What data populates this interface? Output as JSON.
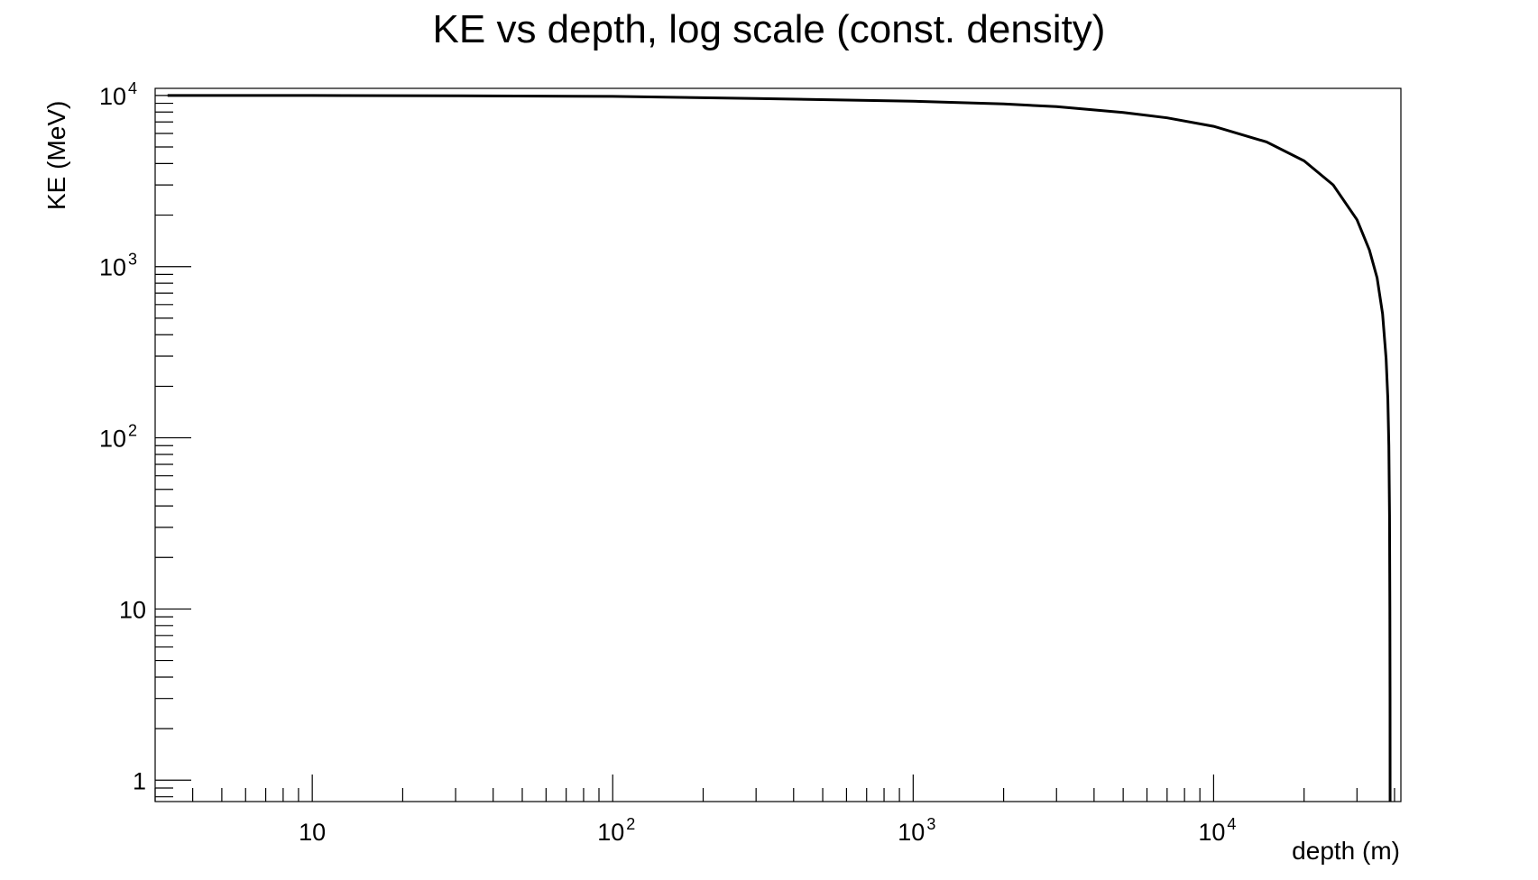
{
  "chart_data": {
    "type": "line",
    "title": "KE vs depth, log scale (const. density)",
    "xlabel": "depth (m)",
    "ylabel": "KE (MeV)",
    "xscale": "log",
    "yscale": "log",
    "xlim": [
      3.0,
      42000
    ],
    "ylim": [
      0.75,
      11000
    ],
    "grid": false,
    "x_ticks": [
      {
        "value": 10,
        "base": "10",
        "exp": ""
      },
      {
        "value": 100,
        "base": "10",
        "exp": "2"
      },
      {
        "value": 1000,
        "base": "10",
        "exp": "3"
      },
      {
        "value": 10000,
        "base": "10",
        "exp": "4"
      }
    ],
    "y_ticks": [
      {
        "value": 1,
        "base": "1",
        "exp": ""
      },
      {
        "value": 10,
        "base": "10",
        "exp": ""
      },
      {
        "value": 100,
        "base": "10",
        "exp": "2"
      },
      {
        "value": 1000,
        "base": "10",
        "exp": "3"
      },
      {
        "value": 10000,
        "base": "10",
        "exp": "4"
      }
    ],
    "series": [
      {
        "color": "#000000",
        "x": [
          3.3,
          10,
          30,
          100,
          300,
          1000,
          2000,
          3000,
          5000,
          7000,
          10000,
          15000,
          20000,
          25000,
          30000,
          33000,
          35000,
          36500,
          37500,
          38000,
          38300,
          38500,
          38600,
          38650,
          38670
        ],
        "y": [
          10000,
          10000,
          9950,
          9880,
          9600,
          9250,
          8920,
          8600,
          7950,
          7400,
          6600,
          5350,
          4150,
          3000,
          1880,
          1250,
          860,
          530,
          290,
          170,
          90,
          35,
          10,
          3,
          0.75
        ]
      }
    ]
  }
}
